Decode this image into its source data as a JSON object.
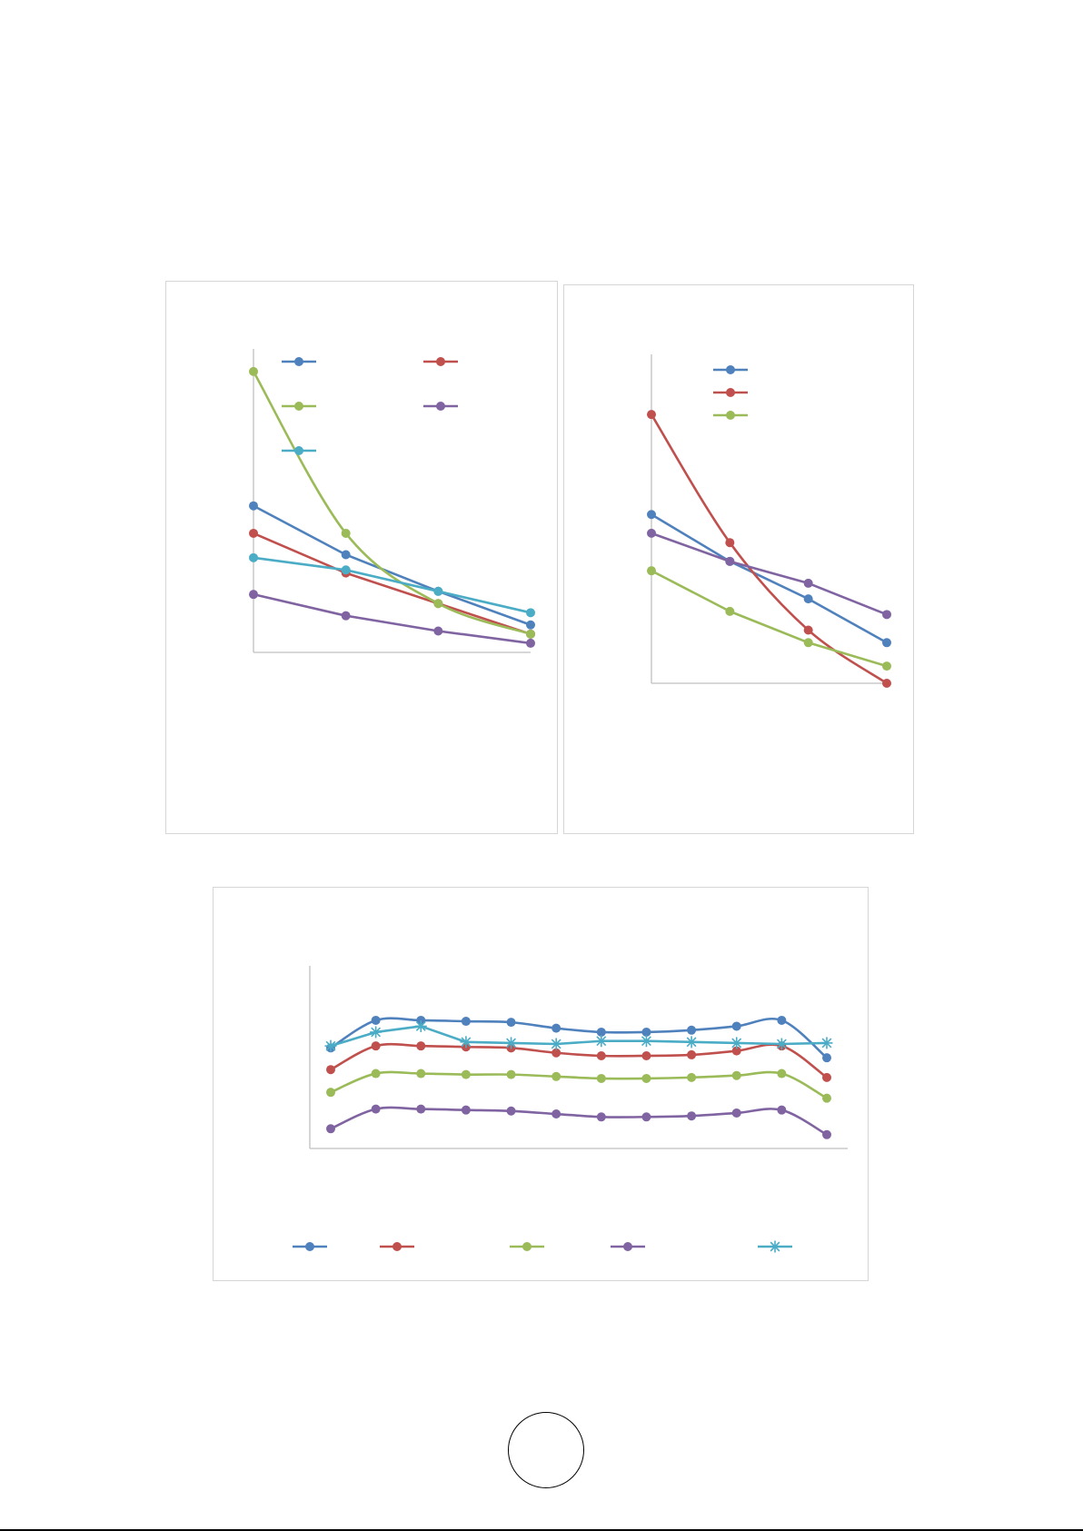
{
  "colors": {
    "blue": "#4f81bd",
    "red": "#c0504d",
    "green": "#9bbb59",
    "purple": "#8064a2",
    "cyan": "#4bacc6",
    "axis": "#bfbfbf",
    "frame": "#d6d6d6"
  },
  "chart_data": [
    {
      "type": "line",
      "x": [
        1,
        2,
        3,
        4
      ],
      "ylim": [
        0,
        100
      ],
      "grid": false,
      "legend_position": "top",
      "series": [
        {
          "color": "#4f81bd",
          "marker": "circle",
          "smooth": false,
          "values": [
            48,
            32,
            20,
            9
          ]
        },
        {
          "color": "#c0504d",
          "marker": "circle",
          "smooth": false,
          "values": [
            39,
            26,
            16,
            6
          ]
        },
        {
          "color": "#9bbb59",
          "marker": "circle",
          "smooth": true,
          "values": [
            92,
            39,
            16,
            6
          ]
        },
        {
          "color": "#8064a2",
          "marker": "circle",
          "smooth": false,
          "values": [
            19,
            12,
            7,
            3
          ]
        },
        {
          "color": "#4bacc6",
          "marker": "circle",
          "smooth": false,
          "values": [
            31,
            27,
            20,
            13
          ]
        }
      ]
    },
    {
      "type": "line",
      "x": [
        1,
        2,
        3,
        4
      ],
      "ylim": [
        0,
        100
      ],
      "grid": false,
      "legend_position": "top-left",
      "series": [
        {
          "color": "#4f81bd",
          "marker": "circle",
          "smooth": false,
          "values": [
            54,
            39,
            27,
            13
          ]
        },
        {
          "color": "#c0504d",
          "marker": "circle",
          "smooth": true,
          "values": [
            86,
            45,
            17,
            0
          ]
        },
        {
          "color": "#9bbb59",
          "marker": "circle",
          "smooth": false,
          "values": [
            36,
            23,
            13,
            5.5
          ]
        },
        {
          "color": "#8064a2",
          "marker": "circle",
          "smooth": false,
          "values": [
            48,
            39,
            32,
            22
          ]
        }
      ]
    },
    {
      "type": "line",
      "x": [
        1,
        2,
        3,
        4,
        5,
        6,
        7,
        8,
        9,
        10,
        11,
        12
      ],
      "ylim": [
        0,
        100
      ],
      "grid": false,
      "legend_position": "bottom",
      "series": [
        {
          "color": "#4f81bd",
          "marker": "circle",
          "smooth": true,
          "values": [
            51,
            65,
            65,
            64.5,
            64,
            61,
            59,
            59,
            60,
            62,
            65,
            46
          ]
        },
        {
          "color": "#c0504d",
          "marker": "circle",
          "smooth": true,
          "values": [
            40,
            52,
            52,
            51.5,
            51,
            48.5,
            47,
            47,
            47.5,
            49.5,
            52,
            36
          ]
        },
        {
          "color": "#9bbb59",
          "marker": "circle",
          "smooth": true,
          "values": [
            28.5,
            38,
            38,
            37.5,
            37.5,
            36.5,
            35.5,
            35.5,
            36,
            37,
            38,
            25.5
          ]
        },
        {
          "color": "#8064a2",
          "marker": "circle",
          "smooth": true,
          "values": [
            10,
            20,
            20,
            19.5,
            19,
            17.5,
            16,
            16,
            16.5,
            18,
            19.5,
            7
          ]
        },
        {
          "color": "#4bacc6",
          "marker": "star",
          "smooth": false,
          "values": [
            52,
            59,
            62,
            54,
            53.5,
            53,
            54.5,
            54.5,
            54,
            53.5,
            53,
            53.5
          ]
        }
      ]
    }
  ]
}
